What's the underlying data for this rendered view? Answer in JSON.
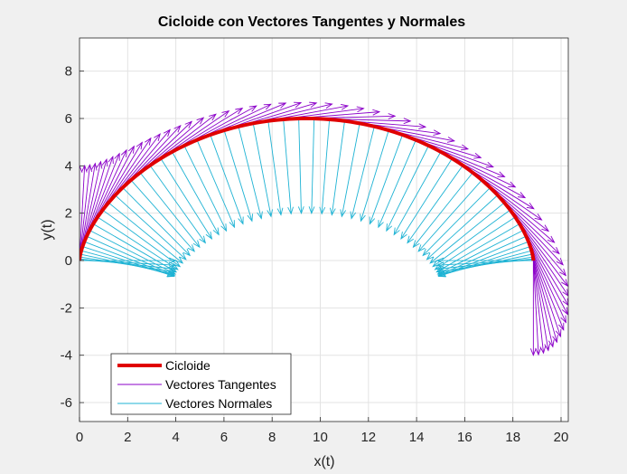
{
  "chart_data": {
    "type": "line",
    "title": "Cicloide con Vectores Tangentes y Normales",
    "xlabel": "x(t)",
    "ylabel": "y(t)",
    "xlim": [
      0,
      20.3
    ],
    "ylim": [
      -6.8,
      9.4
    ],
    "xticks": [
      0,
      2,
      4,
      6,
      8,
      10,
      12,
      14,
      16,
      18,
      20
    ],
    "yticks": [
      -6,
      -4,
      -2,
      0,
      2,
      4,
      6,
      8
    ],
    "grid": true,
    "cycloid": {
      "radius": 3,
      "t_start": 0,
      "t_end": 6.283,
      "samples": 160
    },
    "vectors": {
      "count": 60,
      "t_start": 0,
      "t_end": 6.283,
      "length": 4
    },
    "series": [
      {
        "name": "Cicloide",
        "kind": "cycloid",
        "color": "#e00000"
      },
      {
        "name": "Vectores Tangentes",
        "kind": "tangent",
        "color": "#8b00c9"
      },
      {
        "name": "Vectores Normales",
        "kind": "normal",
        "color": "#1fb3d4"
      }
    ],
    "legend_position": "bottom-left"
  }
}
